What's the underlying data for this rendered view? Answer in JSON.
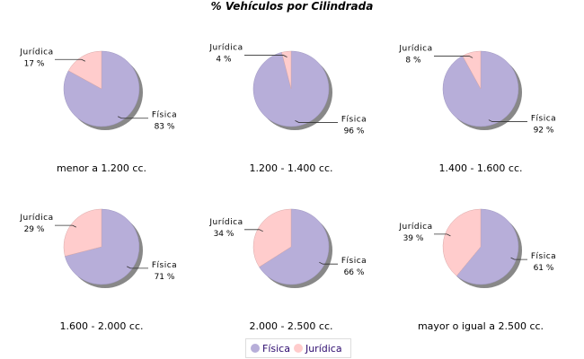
{
  "chart_data": {
    "type": "pie",
    "title": "% Vehículos por Cilindrada",
    "legend": {
      "position": "bottom",
      "entries": [
        "Física",
        "Jurídica"
      ]
    },
    "colors": {
      "Física": "#b7aed9",
      "Jurídica": "#ffcccc"
    },
    "pies": [
      {
        "category": "menor a 1.200 cc.",
        "slices": [
          {
            "name": "Física",
            "value": 83,
            "label": "83 %"
          },
          {
            "name": "Jurídica",
            "value": 17,
            "label": "17 %"
          }
        ]
      },
      {
        "category": "1.200 - 1.400 cc.",
        "slices": [
          {
            "name": "Física",
            "value": 96,
            "label": "96 %"
          },
          {
            "name": "Jurídica",
            "value": 4,
            "label": "4 %"
          }
        ]
      },
      {
        "category": "1.400 - 1.600 cc.",
        "slices": [
          {
            "name": "Física",
            "value": 92,
            "label": "92 %"
          },
          {
            "name": "Jurídica",
            "value": 8,
            "label": "8 %"
          }
        ]
      },
      {
        "category": "1.600 - 2.000 cc.",
        "slices": [
          {
            "name": "Física",
            "value": 71,
            "label": "71 %"
          },
          {
            "name": "Jurídica",
            "value": 29,
            "label": "29 %"
          }
        ]
      },
      {
        "category": "2.000 - 2.500 cc.",
        "slices": [
          {
            "name": "Física",
            "value": 66,
            "label": "66 %"
          },
          {
            "name": "Jurídica",
            "value": 34,
            "label": "34 %"
          }
        ]
      },
      {
        "category": "mayor o igual a 2.500 cc.",
        "slices": [
          {
            "name": "Física",
            "value": 61,
            "label": "61 %"
          },
          {
            "name": "Jurídica",
            "value": 39,
            "label": "39 %"
          }
        ]
      }
    ]
  }
}
